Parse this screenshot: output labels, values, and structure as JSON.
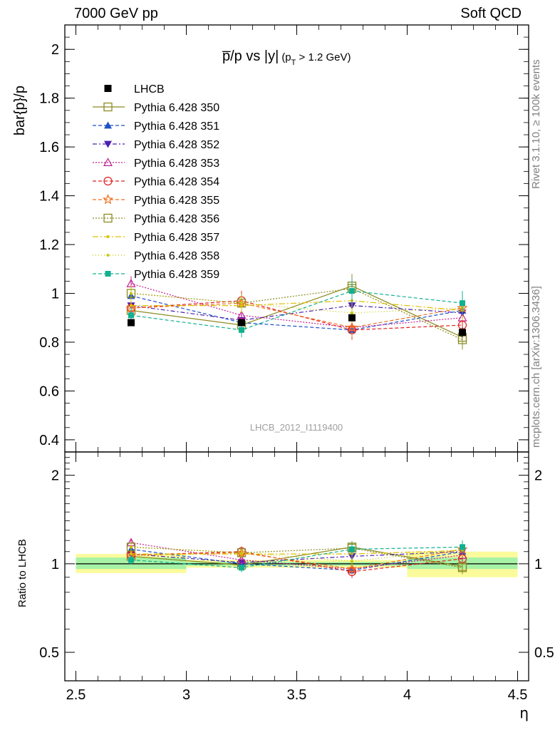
{
  "header": {
    "left": "7000 GeV pp",
    "right": "Soft QCD"
  },
  "side_labels": {
    "rivet": "Rivet 3.1.10, ≥ 100k events",
    "mcplots": "mcplots.cern.ch [arXiv:1306.3436]"
  },
  "chart_data": [
    {
      "type": "line",
      "title": "p̅/p vs |y| (pT > 1.2 GeV)",
      "title_main": "p̅/p vs |y|",
      "title_sub_open": "(p",
      "title_sub_T": "T",
      "title_sub_close": " > 1.2 GeV)",
      "ylabel": "bar{p}/p",
      "watermark": "LHCB_2012_I1119400",
      "ylim": [
        0.35,
        2.1
      ],
      "yticks": [
        {
          "v": 0.4,
          "label": "0.4"
        },
        {
          "v": 0.6,
          "label": "0.6"
        },
        {
          "v": 0.8,
          "label": "0.8"
        },
        {
          "v": 1.0,
          "label": "1"
        },
        {
          "v": 1.2,
          "label": "1.2"
        },
        {
          "v": 1.4,
          "label": "1.4"
        },
        {
          "v": 1.6,
          "label": "1.6"
        },
        {
          "v": 1.8,
          "label": "1.8"
        },
        {
          "v": 2.0,
          "label": "2"
        }
      ],
      "x": [
        2.75,
        3.25,
        3.75,
        4.25
      ],
      "data": {
        "name": "LHCB",
        "values": [
          0.88,
          0.88,
          0.9,
          0.84
        ],
        "errors": [
          0.01,
          0.01,
          0.01,
          0.02
        ]
      },
      "series": [
        {
          "name": "Pythia 6.428 350",
          "color": "#8b8b22",
          "dash": "",
          "marker": "open-square",
          "values": [
            0.93,
            0.87,
            1.03,
            0.82
          ],
          "errors": [
            0.03,
            0.03,
            0.05,
            0.04
          ]
        },
        {
          "name": "Pythia 6.428 351",
          "color": "#1e4fc8",
          "dash": "5,3",
          "marker": "filled-triangle-up",
          "values": [
            0.99,
            0.88,
            0.85,
            0.93
          ],
          "errors": [
            0.03,
            0.03,
            0.04,
            0.04
          ]
        },
        {
          "name": "Pythia 6.428 352",
          "color": "#4b1fb0",
          "dash": "6,3,2,3",
          "marker": "filled-triangle-down",
          "values": [
            0.95,
            0.89,
            0.95,
            0.92
          ],
          "errors": [
            0.03,
            0.03,
            0.04,
            0.04
          ]
        },
        {
          "name": "Pythia 6.428 353",
          "color": "#c0208f",
          "dash": "2,2",
          "marker": "open-triangle-up",
          "values": [
            1.04,
            0.91,
            0.86,
            0.9
          ],
          "errors": [
            0.03,
            0.03,
            0.04,
            0.04
          ]
        },
        {
          "name": "Pythia 6.428 354",
          "color": "#e02020",
          "dash": "5,3",
          "marker": "open-circle",
          "values": [
            0.94,
            0.97,
            0.85,
            0.87
          ],
          "errors": [
            0.03,
            0.04,
            0.04,
            0.04
          ]
        },
        {
          "name": "Pythia 6.428 355",
          "color": "#f07020",
          "dash": "5,3",
          "marker": "open-star",
          "values": [
            0.94,
            0.96,
            0.86,
            0.94
          ],
          "errors": [
            0.03,
            0.04,
            0.04,
            0.04
          ]
        },
        {
          "name": "Pythia 6.428 356",
          "color": "#8b8b22",
          "dash": "2,2",
          "marker": "open-square",
          "values": [
            1.0,
            0.96,
            1.02,
            0.81
          ],
          "errors": [
            0.03,
            0.04,
            0.05,
            0.04
          ]
        },
        {
          "name": "Pythia 6.428 357",
          "color": "#e0c000",
          "dash": "8,3,2,3",
          "marker": "small-dot",
          "values": [
            0.95,
            0.95,
            0.97,
            0.93
          ],
          "errors": [
            0.03,
            0.03,
            0.04,
            0.04
          ]
        },
        {
          "name": "Pythia 6.428 358",
          "color": "#c8c800",
          "dash": "1,3",
          "marker": "small-dot",
          "values": [
            1.0,
            0.96,
            0.92,
            0.94
          ],
          "errors": [
            0.03,
            0.03,
            0.04,
            0.04
          ]
        },
        {
          "name": "Pythia 6.428 359",
          "color": "#10b090",
          "dash": "5,3",
          "marker": "filled-square",
          "values": [
            0.91,
            0.85,
            1.01,
            0.96
          ],
          "errors": [
            0.03,
            0.03,
            0.05,
            0.05
          ]
        }
      ]
    },
    {
      "type": "line",
      "ylabel": "Ratio to LHCB",
      "scale": "log",
      "ylim": [
        0.4,
        2.4
      ],
      "yticks": [
        {
          "v": 0.5,
          "label": "0.5"
        },
        {
          "v": 1.0,
          "label": "1"
        },
        {
          "v": 2.0,
          "label": "2"
        }
      ],
      "xlabel": "η",
      "xlim": [
        2.45,
        4.55
      ],
      "xticks": [
        {
          "v": 2.5,
          "label": "2.5"
        },
        {
          "v": 3.0,
          "label": "3"
        },
        {
          "v": 3.5,
          "label": "3.5"
        },
        {
          "v": 4.0,
          "label": "4"
        },
        {
          "v": 4.5,
          "label": "4.5"
        }
      ],
      "bands": [
        {
          "x": [
            2.5,
            3.0
          ],
          "stat": [
            0.96,
            1.05
          ],
          "total": [
            0.93,
            1.08
          ]
        },
        {
          "x": [
            3.0,
            3.5
          ],
          "stat": [
            0.985,
            1.015
          ],
          "total": [
            0.97,
            1.03
          ]
        },
        {
          "x": [
            3.5,
            4.0
          ],
          "stat": [
            0.985,
            1.015
          ],
          "total": [
            0.97,
            1.03
          ]
        },
        {
          "x": [
            4.0,
            4.5
          ],
          "stat": [
            0.96,
            1.05
          ],
          "total": [
            0.9,
            1.1
          ]
        }
      ],
      "series_ratios": [
        [
          1.06,
          0.99,
          1.14,
          0.98
        ],
        [
          1.12,
          1.0,
          0.95,
          1.1
        ],
        [
          1.08,
          1.01,
          1.06,
          1.1
        ],
        [
          1.18,
          1.03,
          0.96,
          1.07
        ],
        [
          1.07,
          1.1,
          0.94,
          1.04
        ],
        [
          1.07,
          1.09,
          0.96,
          1.12
        ],
        [
          1.14,
          1.09,
          1.13,
          0.97
        ],
        [
          1.08,
          1.08,
          1.08,
          1.11
        ],
        [
          1.14,
          1.09,
          1.02,
          1.12
        ],
        [
          1.03,
          0.97,
          1.12,
          1.14
        ]
      ]
    }
  ]
}
